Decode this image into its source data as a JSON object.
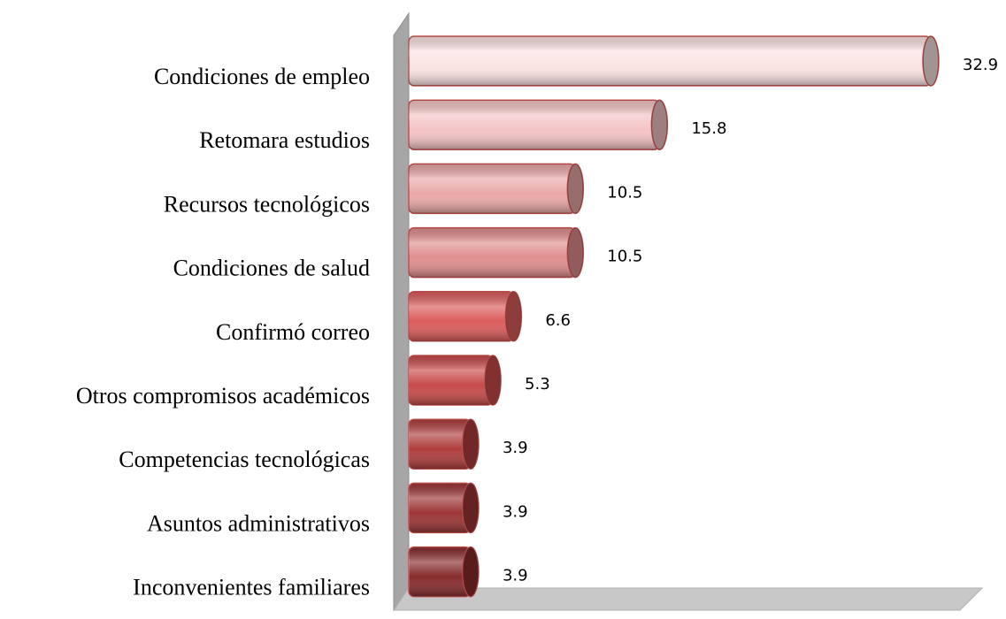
{
  "chart_data": {
    "type": "bar",
    "orientation": "horizontal",
    "categories": [
      "Condiciones de empleo",
      "Retomara estudios",
      "Recursos tecnológicos",
      "Condiciones de salud",
      "Confirmó correo",
      "Otros compromisos académicos",
      "Competencias tecnológicas",
      "Asuntos administrativos",
      "Inconvenientes familiares"
    ],
    "values": [
      32.9,
      15.8,
      10.5,
      10.5,
      6.6,
      5.3,
      3.9,
      3.9,
      3.9
    ],
    "colors": [
      "#fbe3e3",
      "#f3c4c4",
      "#eaa8a8",
      "#e08e8e",
      "#dc5c5c",
      "#c84a4a",
      "#b03e3e",
      "#9c3535",
      "#872c2c"
    ]
  }
}
